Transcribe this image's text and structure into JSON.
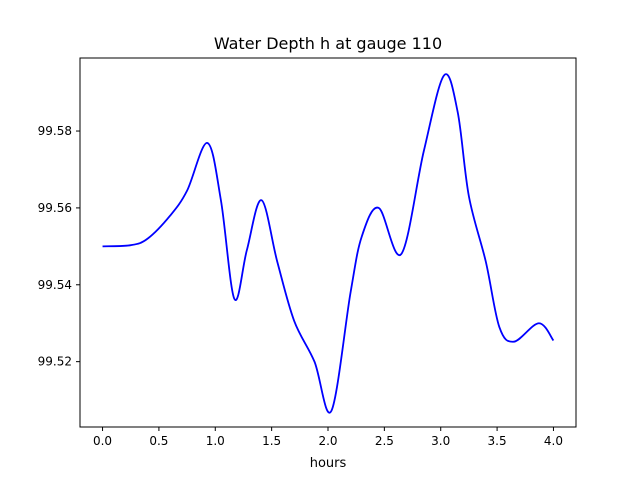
{
  "chart_data": {
    "type": "line",
    "title": "Water Depth h at gauge 110",
    "xlabel": "hours",
    "ylabel": "",
    "xlim": [
      -0.2,
      4.2
    ],
    "ylim": [
      99.503,
      99.599
    ],
    "xticks": [
      0.0,
      0.5,
      1.0,
      1.5,
      2.0,
      2.5,
      3.0,
      3.5,
      4.0
    ],
    "xtick_labels": [
      "0.0",
      "0.5",
      "1.0",
      "1.5",
      "2.0",
      "2.5",
      "3.0",
      "3.5",
      "4.0"
    ],
    "yticks": [
      99.52,
      99.54,
      99.56,
      99.58
    ],
    "ytick_labels": [
      "99.52",
      "99.54",
      "99.56",
      "99.58"
    ],
    "grid": false,
    "series": [
      {
        "name": "h",
        "color": "#0000ff",
        "x": [
          0.0,
          0.25,
          0.4,
          0.6,
          0.75,
          0.93,
          1.05,
          1.17,
          1.28,
          1.41,
          1.55,
          1.7,
          1.88,
          2.03,
          2.2,
          2.3,
          2.45,
          2.65,
          2.85,
          3.03,
          3.15,
          3.25,
          3.4,
          3.52,
          3.65,
          3.87,
          4.0
        ],
        "y": [
          99.55,
          99.5503,
          99.552,
          99.558,
          99.5645,
          99.5769,
          99.562,
          99.5363,
          99.549,
          99.562,
          99.546,
          99.5306,
          99.52,
          99.5072,
          99.538,
          99.5526,
          99.56,
          99.548,
          99.5748,
          99.5945,
          99.585,
          99.563,
          99.546,
          99.529,
          99.5252,
          99.53,
          99.5255
        ]
      }
    ]
  }
}
